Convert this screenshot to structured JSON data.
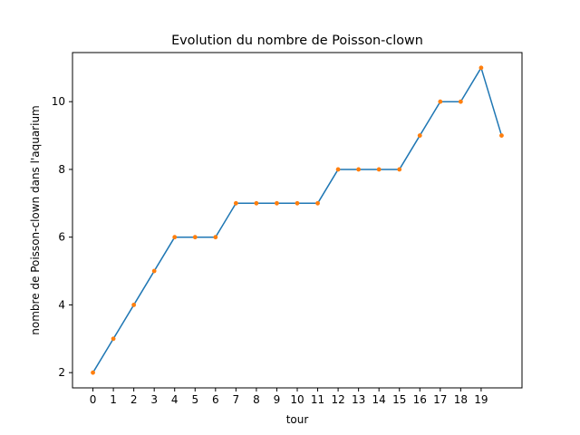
{
  "chart_data": {
    "type": "line",
    "title": "Evolution du nombre de Poisson-clown",
    "xlabel": "tour",
    "ylabel": "nombre de Poisson-clown dans l'aquarium",
    "x": [
      0,
      1,
      2,
      3,
      4,
      5,
      6,
      7,
      8,
      9,
      10,
      11,
      12,
      13,
      14,
      15,
      16,
      17,
      18,
      19,
      20
    ],
    "series": [
      {
        "values": [
          2,
          3,
          4,
          5,
          6,
          6,
          6,
          7,
          7,
          7,
          7,
          7,
          8,
          8,
          8,
          8,
          9,
          10,
          10,
          11,
          9
        ]
      }
    ],
    "x_ticks": [
      0,
      1,
      2,
      3,
      4,
      5,
      6,
      7,
      8,
      9,
      10,
      11,
      12,
      13,
      14,
      15,
      16,
      17,
      18,
      19
    ],
    "y_ticks": [
      2,
      4,
      6,
      8,
      10
    ],
    "xlim": [
      -1,
      21
    ],
    "ylim": [
      1.55,
      11.45
    ],
    "grid": false,
    "line_color": "#1f77b4",
    "marker_color": "#ff7f0e"
  }
}
